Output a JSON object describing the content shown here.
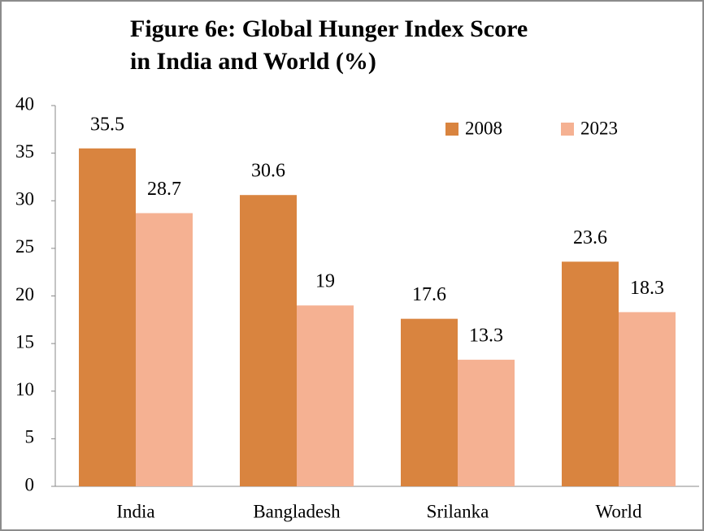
{
  "chart_data": {
    "type": "bar",
    "title": [
      "Figure 6e: Global Hunger Index Score",
      "in India and World (%)"
    ],
    "categories": [
      "India",
      "Bangladesh",
      "Srilanka",
      "World"
    ],
    "series": [
      {
        "name": "2008",
        "color": "#d9843f",
        "values": [
          35.5,
          30.6,
          17.6,
          23.6
        ]
      },
      {
        "name": "2023",
        "color": "#f5b192",
        "values": [
          28.7,
          19,
          13.3,
          18.3
        ]
      }
    ],
    "ylim": [
      0,
      40
    ],
    "yticks": [
      0,
      5,
      10,
      15,
      20,
      25,
      30,
      35,
      40
    ],
    "grid": false,
    "legend": "top-right"
  }
}
